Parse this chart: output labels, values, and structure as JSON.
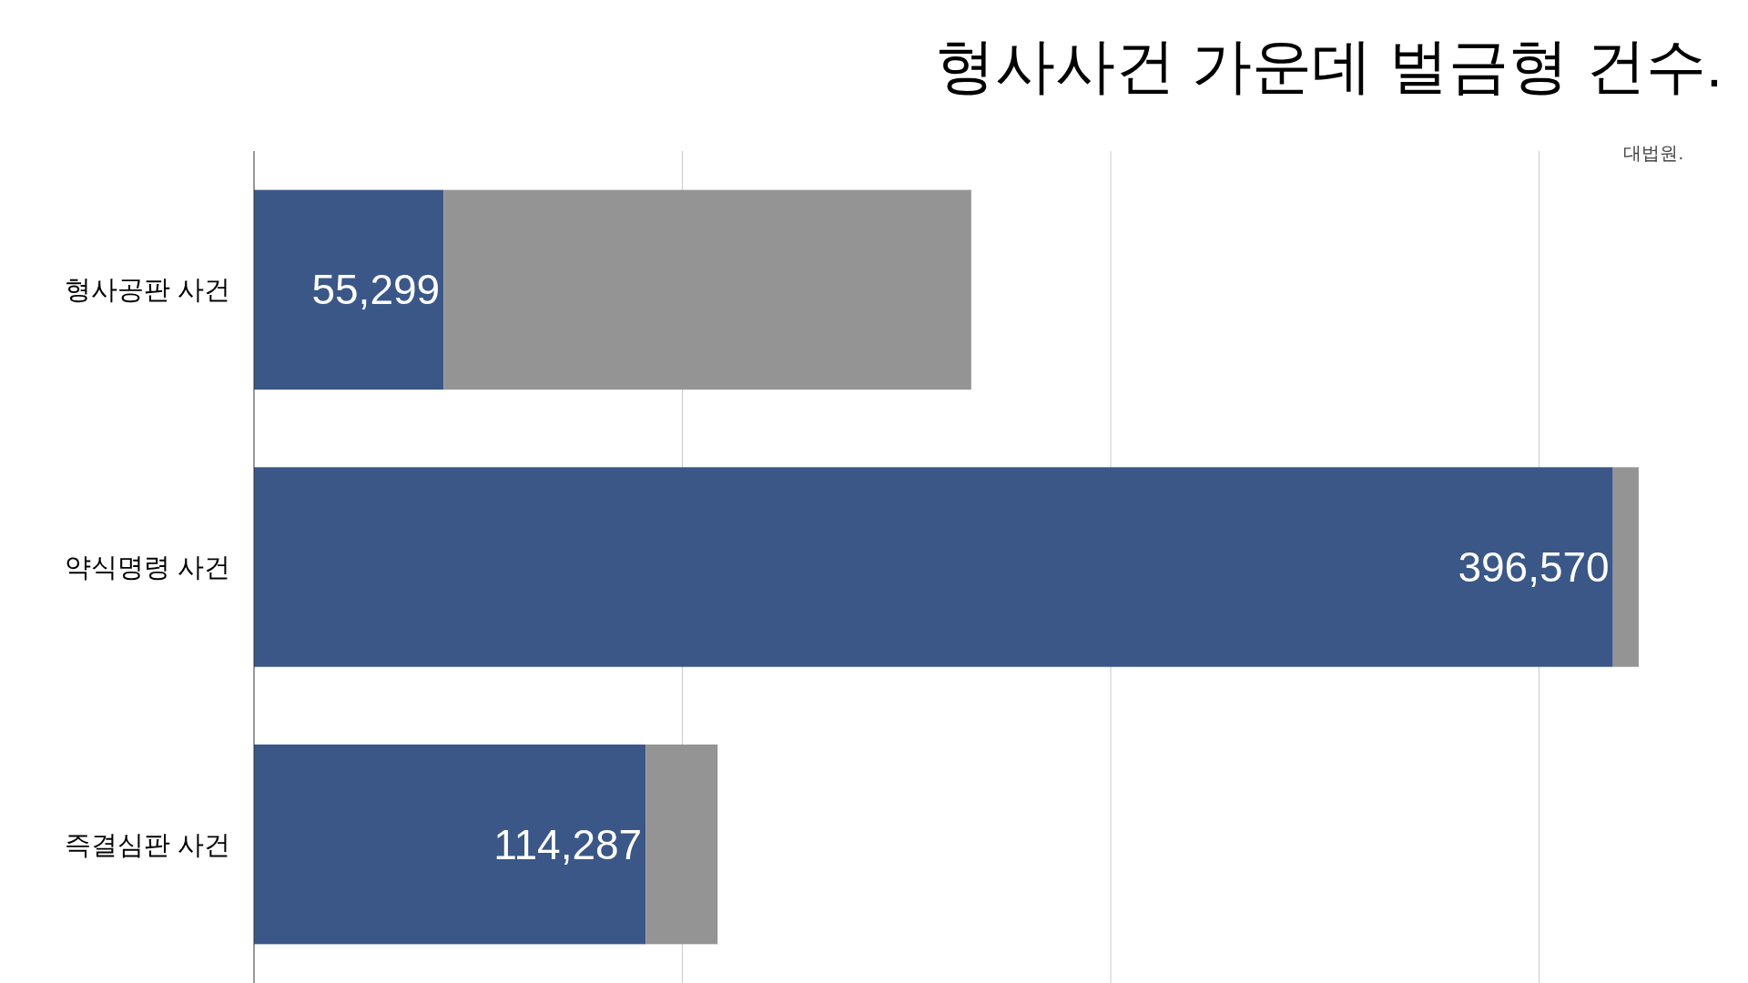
{
  "chart_data": {
    "type": "bar",
    "orientation": "horizontal",
    "stacked": true,
    "title": "형사사건 가운데 벌금형 건수.",
    "annotations": [
      "대법원."
    ],
    "categories": [
      "형사공판 사건",
      "약식명령 사건",
      "즉결심판 사건"
    ],
    "series": [
      {
        "color": "#3a5787",
        "values": [
          55299,
          396570,
          114287
        ],
        "value_labels": [
          "55,299",
          "396,570",
          "114,287"
        ]
      },
      {
        "color": "#949494",
        "values": [
          154000,
          7500,
          21000
        ]
      }
    ],
    "xticks": [
      {
        "value": 0,
        "label": null
      },
      {
        "value": 125000,
        "label": null
      },
      {
        "value": 250000,
        "label": null
      },
      {
        "value": 375000,
        "label": null
      }
    ],
    "tick_labels": "y",
    "grid": "x"
  }
}
